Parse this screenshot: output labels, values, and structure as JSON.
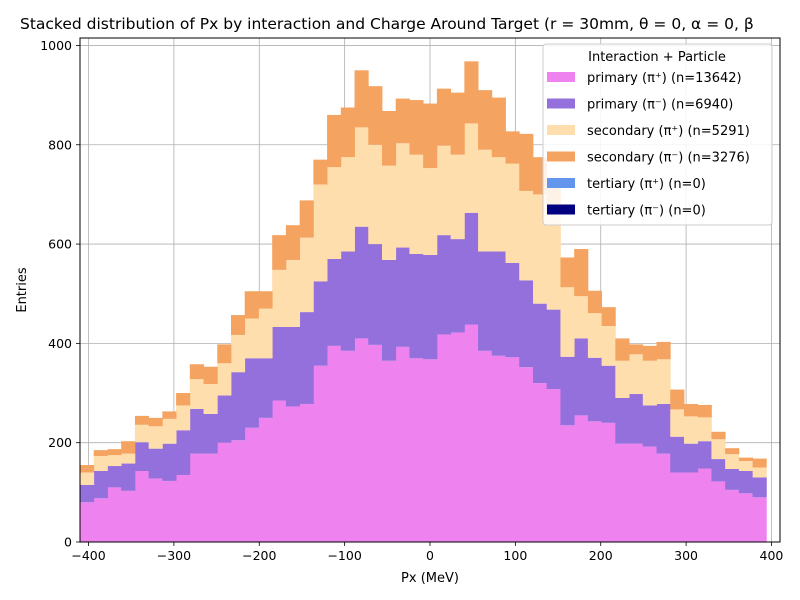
{
  "chart_data": {
    "type": "bar",
    "stacked": true,
    "title": "Stacked distribution of Px by interaction and Charge Around Target (r = 30mm, θ = 0, α = 0, β",
    "xlabel": "Px (MeV)",
    "ylabel": "Entries",
    "xlim": [
      -410,
      410
    ],
    "ylim": [
      0,
      1015
    ],
    "xticks": [
      "−400",
      "−300",
      "−200",
      "−100",
      "0",
      "100",
      "200",
      "300",
      "400"
    ],
    "yticks": [
      "0",
      "200",
      "400",
      "600",
      "800",
      "1000"
    ],
    "grid": true,
    "legend_title": "Interaction + Particle",
    "legend_position": "top-right",
    "bin_start": -410,
    "bin_width": 16.08,
    "series": [
      {
        "name": "primary (π⁺) (n=13642)",
        "color": "#ee82ee",
        "values": [
          80,
          88,
          110,
          103,
          143,
          128,
          123,
          135,
          178,
          178,
          200,
          205,
          230,
          250,
          285,
          273,
          278,
          355,
          395,
          385,
          410,
          397,
          365,
          393,
          370,
          368,
          418,
          422,
          438,
          385,
          375,
          372,
          352,
          320,
          308,
          235,
          255,
          243,
          240,
          198,
          198,
          192,
          178,
          140,
          140,
          148,
          122,
          105,
          98,
          90
        ]
      },
      {
        "name": "primary (π⁻) (n=6940)",
        "color": "#9370db",
        "values": [
          35,
          55,
          43,
          55,
          58,
          60,
          75,
          90,
          90,
          80,
          95,
          137,
          140,
          120,
          148,
          160,
          185,
          170,
          175,
          200,
          225,
          203,
          203,
          200,
          210,
          210,
          200,
          188,
          225,
          200,
          210,
          190,
          175,
          160,
          160,
          138,
          155,
          128,
          115,
          92,
          100,
          83,
          100,
          72,
          58,
          55,
          45,
          42,
          45,
          40
        ]
      },
      {
        "name": "secondary (π⁺) (n=5291)",
        "color": "#ffdead",
        "values": [
          25,
          30,
          22,
          20,
          35,
          45,
          50,
          50,
          60,
          60,
          65,
          75,
          80,
          100,
          115,
          135,
          150,
          195,
          185,
          190,
          200,
          200,
          190,
          210,
          200,
          175,
          180,
          170,
          180,
          205,
          190,
          200,
          180,
          220,
          195,
          140,
          85,
          90,
          80,
          75,
          80,
          90,
          90,
          55,
          55,
          48,
          40,
          30,
          20,
          20
        ]
      },
      {
        "name": "secondary (π⁻) (n=3276)",
        "color": "#f4a460",
        "values": [
          15,
          12,
          12,
          25,
          18,
          17,
          15,
          25,
          30,
          35,
          38,
          40,
          55,
          35,
          70,
          70,
          75,
          50,
          105,
          100,
          115,
          118,
          110,
          90,
          110,
          130,
          115,
          125,
          125,
          120,
          120,
          65,
          115,
          75,
          57,
          60,
          95,
          45,
          38,
          45,
          20,
          30,
          35,
          40,
          25,
          25,
          15,
          12,
          7,
          18
        ]
      },
      {
        "name": "tertiary (π⁺) (n=0)",
        "color": "#6495ed",
        "values": []
      },
      {
        "name": "tertiary (π⁻) (n=0)",
        "color": "#000080",
        "values": []
      }
    ]
  }
}
